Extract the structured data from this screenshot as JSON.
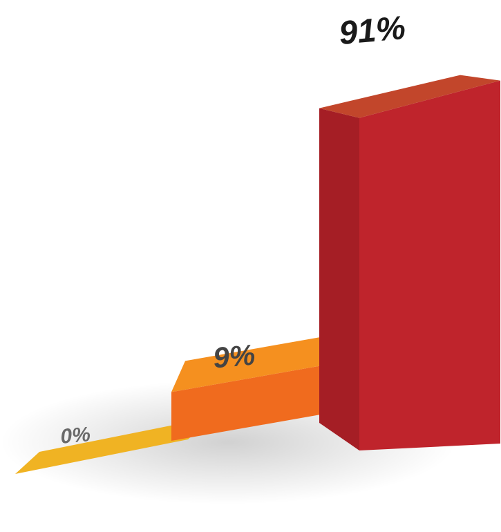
{
  "chart_data": {
    "type": "bar",
    "categories": [
      "",
      "",
      ""
    ],
    "values": [
      0,
      9,
      91
    ],
    "value_unit": "%",
    "data_labels": [
      "0%",
      "9%",
      "91%"
    ],
    "ylim": [
      0,
      100
    ],
    "grid": false,
    "legend": "none",
    "three_d": true,
    "colors": [
      {
        "front": "#F0B323",
        "side": "#E09A18",
        "top": "#F0B323"
      },
      {
        "front": "#F06B1E",
        "side": "#E85A18",
        "top": "#F5901F"
      },
      {
        "front": "#BF242C",
        "side": "#A51E25",
        "top": "#C2462B"
      }
    ],
    "label_colors": [
      "#6a6a6a",
      "#444444",
      "#1a1a1a"
    ]
  }
}
